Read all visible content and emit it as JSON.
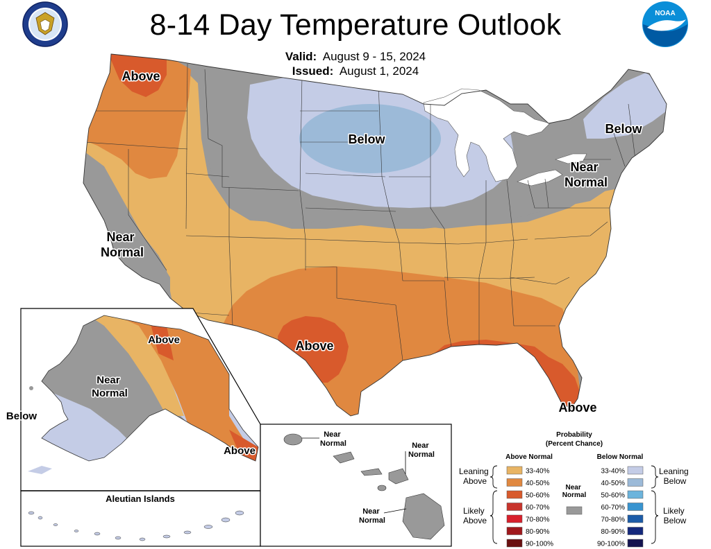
{
  "title": "8-14 Day Temperature Outlook",
  "valid": {
    "label": "Valid:",
    "value": "August 9 - 15, 2024"
  },
  "issued": {
    "label": "Issued:",
    "value": "August 1, 2024"
  },
  "logos": {
    "left": "doc-seal-icon",
    "right": "noaa-logo-icon",
    "noaa_text": "NOAA"
  },
  "colors": {
    "above_33_40": "#e8b464",
    "above_40_50": "#e08840",
    "above_50_60": "#d85a2c",
    "above_60_70": "#c8342c",
    "above_70_80": "#d8202c",
    "above_80_90": "#a0181c",
    "above_90_100": "#6a1010",
    "near_normal": "#999999",
    "below_33_40": "#c4cce6",
    "below_40_50": "#9cbad8",
    "below_50_60": "#6cb4dc",
    "below_60_70": "#3894d0",
    "below_70_80": "#1c5ca8",
    "below_80_90": "#14287c",
    "below_90_100": "#141450"
  },
  "map_labels": {
    "pnw": "Above",
    "north_plains": "Below",
    "new_england": "Below",
    "northeast": "Near\nNormal",
    "california": "Near\nNormal",
    "texas": "Above",
    "florida": "Above",
    "ak_north": "Above",
    "ak_interior": "Near\nNormal",
    "ak_west": "Below",
    "ak_south": "Above",
    "aleutian_title": "Aleutian Islands",
    "hi_kauai": "Near\nNormal",
    "hi_maui": "Near\nNormal",
    "hi_big_island": "Near\nNormal"
  },
  "legend": {
    "title_line1": "Probability",
    "title_line2": "(Percent Chance)",
    "above_header": "Above Normal",
    "below_header": "Below Normal",
    "near_normal_label": "Near\nNormal",
    "leaning_above": "Leaning\nAbove",
    "likely_above": "Likely\nAbove",
    "leaning_below": "Leaning\nBelow",
    "likely_below": "Likely\nBelow",
    "above_bins": [
      "33-40%",
      "40-50%",
      "50-60%",
      "60-70%",
      "70-80%",
      "80-90%",
      "90-100%"
    ],
    "below_bins": [
      "33-40%",
      "40-50%",
      "50-60%",
      "60-70%",
      "70-80%",
      "80-90%",
      "90-100%"
    ]
  }
}
